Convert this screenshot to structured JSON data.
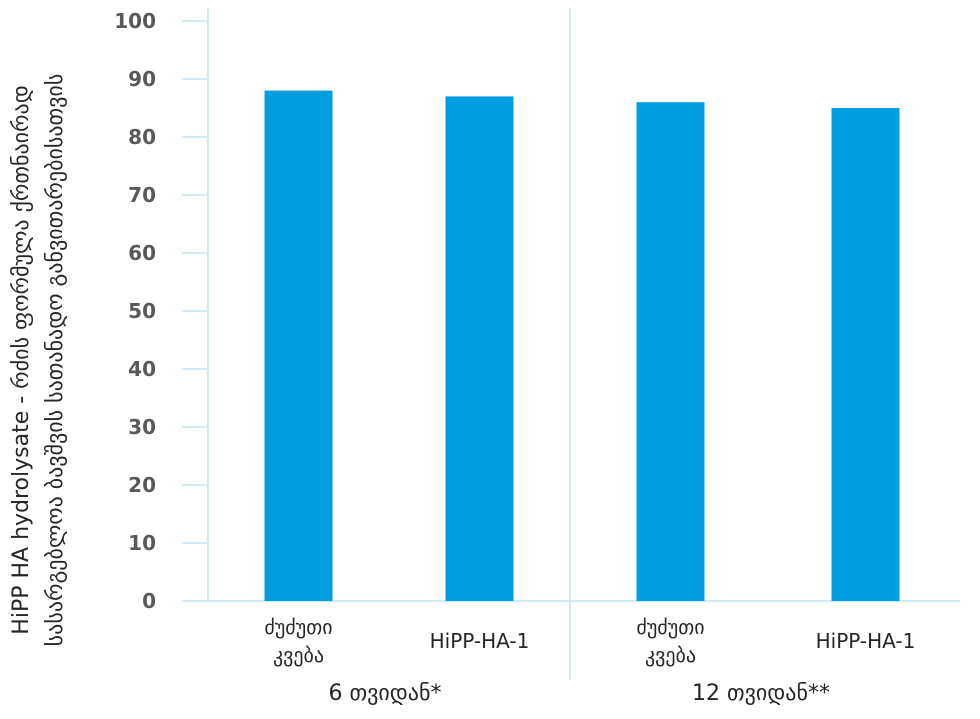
{
  "chart_data": {
    "type": "bar",
    "ylabel_lines": [
      "HiPP HA hydrolysate - რძის ფორმულა ქრთნაირად",
      "სასარგებლოა ბავშვის სათანადო განვითარებისათვის"
    ],
    "yticks": [
      "0",
      "10",
      "20",
      "30",
      "40",
      "50",
      "60",
      "70",
      "80",
      "90",
      "100"
    ],
    "ylim": [
      0,
      100
    ],
    "groups": [
      {
        "label": "6 თვიდან*",
        "bars": [
          {
            "label_lines": [
              "ძუძუთი",
              "კვება"
            ],
            "value": 88
          },
          {
            "label_lines": [
              "HiPP-HA-1"
            ],
            "value": 87
          }
        ]
      },
      {
        "label": "12 თვიდან**",
        "bars": [
          {
            "label_lines": [
              "ძუძუთი",
              "კვება"
            ],
            "value": 86
          },
          {
            "label_lines": [
              "HiPP-HA-1"
            ],
            "value": 85
          }
        ]
      }
    ],
    "colors": {
      "bar": "#009ee0",
      "axis": "#d0eaf6"
    },
    "grid": false,
    "legend": "none"
  }
}
